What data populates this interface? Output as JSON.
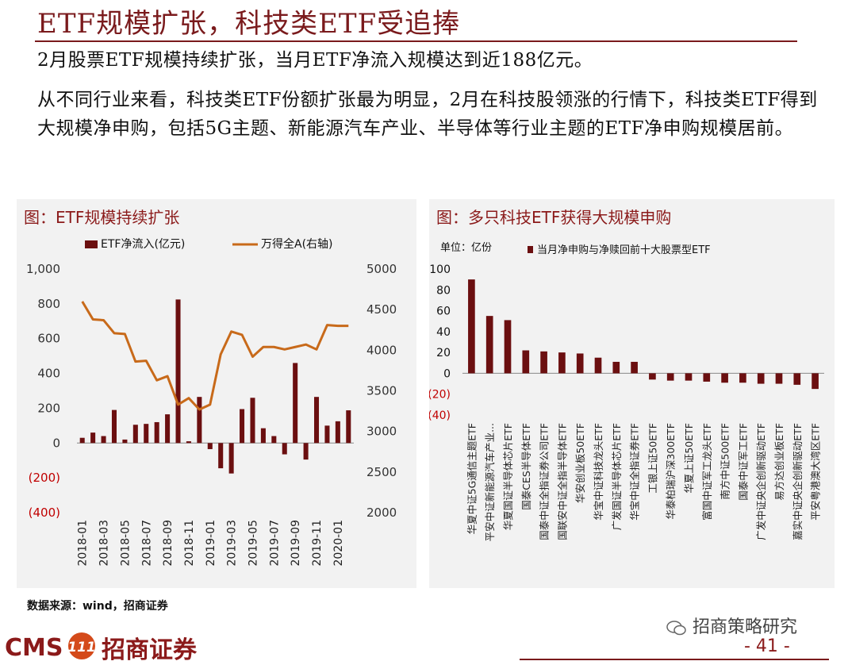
{
  "title": "ETF规模扩张，科技类ETF受追捧",
  "paragraph1": "2月股票ETF规模持续扩张，当月ETF净流入规模达到近188亿元。",
  "paragraph2": "从不同行业来看，科技类ETF份额扩张最为明显，2月在科技股领涨的行情下，科技类ETF得到大规模净申购，包括5G主题、新能源汽车产业、半导体等行业主题的ETF净申购规模居前。",
  "colors": {
    "brand": "#7a1a1c",
    "bar": "#6b0f10",
    "line": "#c86a1a",
    "negative_label": "#c00000"
  },
  "source": "数据来源：wind，招商证券",
  "logo": {
    "cms": "CMS",
    "name": "招商证券",
    "mark": "111"
  },
  "wechat": "招商策略研究",
  "page_number": "- 41 -",
  "chart_data": [
    {
      "type": "bar+line",
      "title": "图：ETF规模持续扩张",
      "legend": [
        "ETF净流入(亿元)",
        "万得全A(右轴)"
      ],
      "y_left_ticks": [
        "1,000",
        "800",
        "600",
        "400",
        "200",
        "0",
        "(200)",
        "(400)"
      ],
      "y_left_range": [
        -400,
        1000
      ],
      "y_right_ticks": [
        "5000",
        "4500",
        "4000",
        "3500",
        "3000",
        "2500",
        "2000"
      ],
      "y_right_range": [
        2000,
        5000
      ],
      "x_tick_labels": [
        "2018-01",
        "2018-03",
        "2018-05",
        "2018-07",
        "2018-09",
        "2018-11",
        "2019-01",
        "2019-03",
        "2019-05",
        "2019-07",
        "2019-09",
        "2019-11",
        "2020-01"
      ],
      "months": [
        "2018-01",
        "2018-02",
        "2018-03",
        "2018-04",
        "2018-05",
        "2018-06",
        "2018-07",
        "2018-08",
        "2018-09",
        "2018-10",
        "2018-11",
        "2018-12",
        "2019-01",
        "2019-02",
        "2019-03",
        "2019-04",
        "2019-05",
        "2019-06",
        "2019-07",
        "2019-08",
        "2019-09",
        "2019-10",
        "2019-11",
        "2019-12",
        "2020-01",
        "2020-02"
      ],
      "etf_net_inflow": [
        30,
        60,
        40,
        190,
        20,
        105,
        110,
        120,
        165,
        825,
        10,
        265,
        -35,
        -145,
        -175,
        195,
        260,
        85,
        40,
        -65,
        460,
        -95,
        265,
        100,
        125,
        188
      ],
      "wind_all_a": [
        4600,
        4380,
        4370,
        4210,
        4200,
        3860,
        3870,
        3630,
        3680,
        3330,
        3410,
        3270,
        3330,
        3950,
        4230,
        4190,
        3920,
        4040,
        4040,
        4010,
        4040,
        4070,
        4010,
        4310,
        4300,
        4300
      ]
    },
    {
      "type": "bar",
      "title": "图：多只科技ETF获得大规模申购",
      "unit": "单位：亿份",
      "legend": [
        "当月净申购与净赎回前十大股票型ETF"
      ],
      "y_ticks": [
        "100",
        "80",
        "60",
        "40",
        "20",
        "0",
        "(20)",
        "(40)"
      ],
      "y_range": [
        -40,
        100
      ],
      "categories": [
        "华夏中证5G通信主题ETF",
        "平安中证新能源汽车产业...",
        "华夏国证半导体芯片ETF",
        "国泰CES半导体ETF",
        "国泰中证全指证券公司ETF",
        "国联安中证全指半导体ETF",
        "华安创业板50ETF",
        "华宝中证科技龙头ETF",
        "广发国证半导体芯片ETF",
        "华宝中证全指证券ETF",
        "工银上证50ETF",
        "华泰柏瑞沪深300ETF",
        "华夏上证50ETF",
        "富国中证军工龙头ETF",
        "南方中证500ETF",
        "国泰中证军工ETF",
        "广发中证央企创新驱动ETF",
        "易方达创业板ETF",
        "嘉实中证央企创新驱动ETF",
        "平安粤港澳大湾区ETF"
      ],
      "values": [
        90,
        55,
        51,
        22,
        21,
        20,
        19,
        15,
        11,
        11,
        -6,
        -7,
        -7,
        -8,
        -9,
        -9,
        -10,
        -10,
        -11,
        -15
      ]
    }
  ]
}
